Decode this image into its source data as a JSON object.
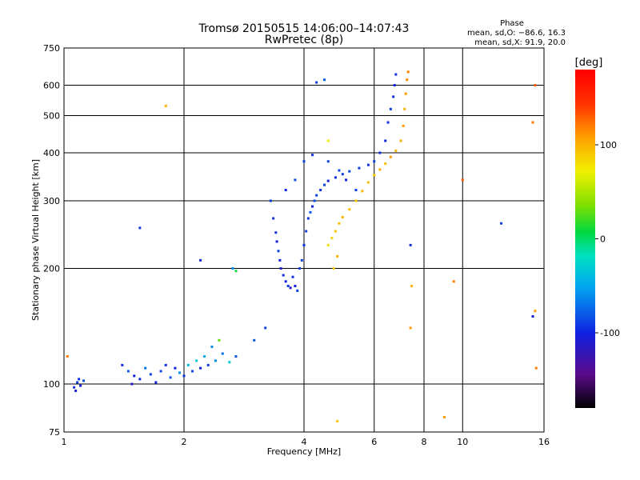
{
  "header": {
    "title": "Tromsø 20150515 14:06:00–14:07:43",
    "subtitle": "RwPretec (8p)",
    "phase_title": "Phase",
    "phase_o": "mean, sd,O: −86.6, 16.3",
    "phase_x": "mean, sd,X:  91.9, 20.0"
  },
  "chart_data": {
    "type": "scatter",
    "xlabel": "Frequency [MHz]",
    "ylabel": "Stationary phase Virtual Height [km]",
    "x_scale": "log",
    "y_scale": "log",
    "xlim": [
      1,
      16
    ],
    "ylim": [
      75,
      750
    ],
    "x_ticks": [
      1,
      2,
      4,
      6,
      8,
      10,
      16
    ],
    "y_ticks": [
      75,
      100,
      200,
      300,
      400,
      500,
      600,
      750
    ],
    "grid": true,
    "colorbar": {
      "label": "[deg]",
      "range": [
        -180,
        180
      ],
      "ticks": [
        -100,
        0,
        100
      ]
    },
    "series": [
      {
        "points": [
          [
            1.06,
            98,
            -95
          ],
          [
            1.08,
            101,
            -90
          ],
          [
            1.1,
            99,
            -100
          ],
          [
            1.12,
            102,
            -85
          ],
          [
            1.07,
            96,
            -110
          ],
          [
            1.09,
            103,
            -95
          ],
          [
            1.45,
            108,
            -80
          ],
          [
            1.5,
            105,
            -100
          ],
          [
            1.55,
            103,
            -95
          ],
          [
            1.6,
            110,
            -70
          ],
          [
            1.65,
            106,
            -90
          ],
          [
            1.7,
            101,
            -100
          ],
          [
            1.75,
            108,
            -85
          ],
          [
            1.8,
            112,
            -95
          ],
          [
            1.85,
            104,
            -80
          ],
          [
            1.9,
            110,
            -100
          ],
          [
            1.95,
            107,
            -60
          ],
          [
            2.0,
            105,
            -95
          ],
          [
            2.05,
            112,
            -40
          ],
          [
            2.1,
            108,
            -85
          ],
          [
            2.15,
            115,
            -30
          ],
          [
            2.2,
            110,
            -100
          ],
          [
            2.25,
            118,
            -50
          ],
          [
            2.3,
            112,
            -90
          ],
          [
            2.4,
            115,
            -60
          ],
          [
            2.5,
            120,
            -70
          ],
          [
            2.6,
            114,
            -30
          ],
          [
            2.7,
            118,
            -80
          ],
          [
            1.4,
            112,
            -95
          ],
          [
            1.48,
            100,
            -110
          ],
          [
            2.35,
            125,
            -60
          ],
          [
            2.45,
            130,
            30
          ],
          [
            3.0,
            130,
            -80
          ],
          [
            3.2,
            140,
            -90
          ],
          [
            3.4,
            248,
            -95
          ],
          [
            3.42,
            235,
            -100
          ],
          [
            3.45,
            222,
            -90
          ],
          [
            3.48,
            210,
            -100
          ],
          [
            3.5,
            200,
            -105
          ],
          [
            3.55,
            192,
            -95
          ],
          [
            3.6,
            185,
            -100
          ],
          [
            3.65,
            180,
            -90
          ],
          [
            3.7,
            178,
            -110
          ],
          [
            3.75,
            190,
            -95
          ],
          [
            3.8,
            180,
            -100
          ],
          [
            3.85,
            175,
            -90
          ],
          [
            3.9,
            200,
            -85
          ],
          [
            3.95,
            210,
            -90
          ],
          [
            4.0,
            230,
            -95
          ],
          [
            4.05,
            250,
            -90
          ],
          [
            4.1,
            270,
            -95
          ],
          [
            4.15,
            280,
            -80
          ],
          [
            4.2,
            290,
            -100
          ],
          [
            4.25,
            300,
            -85
          ],
          [
            4.3,
            310,
            -90
          ],
          [
            4.4,
            320,
            -95
          ],
          [
            4.5,
            330,
            -90
          ],
          [
            4.6,
            338,
            -100
          ],
          [
            4.8,
            345,
            -95
          ],
          [
            5.0,
            352,
            -90
          ],
          [
            5.2,
            358,
            -85
          ],
          [
            5.5,
            365,
            -90
          ],
          [
            5.8,
            372,
            -95
          ],
          [
            6.0,
            380,
            -90
          ],
          [
            6.2,
            400,
            -95
          ],
          [
            6.4,
            430,
            -100
          ],
          [
            6.5,
            480,
            -95
          ],
          [
            6.6,
            520,
            -90
          ],
          [
            6.7,
            560,
            -95
          ],
          [
            6.75,
            600,
            -100
          ],
          [
            6.8,
            640,
            -95
          ],
          [
            3.3,
            300,
            -90
          ],
          [
            3.35,
            270,
            -95
          ],
          [
            3.6,
            320,
            -100
          ],
          [
            3.8,
            340,
            -85
          ],
          [
            4.0,
            380,
            -90
          ],
          [
            4.2,
            395,
            -95
          ],
          [
            4.6,
            380,
            -90
          ],
          [
            4.9,
            360,
            -85
          ],
          [
            5.1,
            340,
            -100
          ],
          [
            4.5,
            620,
            -80
          ],
          [
            4.3,
            610,
            -90
          ],
          [
            4.6,
            230,
            80
          ],
          [
            4.7,
            240,
            85
          ],
          [
            4.8,
            250,
            90
          ],
          [
            4.9,
            262,
            95
          ],
          [
            5.0,
            272,
            100
          ],
          [
            5.2,
            285,
            95
          ],
          [
            5.4,
            300,
            90
          ],
          [
            5.6,
            318,
            100
          ],
          [
            5.8,
            335,
            95
          ],
          [
            6.0,
            350,
            90
          ],
          [
            6.2,
            362,
            100
          ],
          [
            6.4,
            375,
            95
          ],
          [
            6.6,
            390,
            110
          ],
          [
            6.8,
            405,
            100
          ],
          [
            7.0,
            430,
            105
          ],
          [
            7.1,
            470,
            110
          ],
          [
            7.15,
            520,
            100
          ],
          [
            7.2,
            570,
            110
          ],
          [
            7.25,
            620,
            115
          ],
          [
            7.3,
            650,
            120
          ],
          [
            4.75,
            200,
            85
          ],
          [
            4.85,
            215,
            100
          ],
          [
            1.8,
            530,
            100
          ],
          [
            1.55,
            255,
            -90
          ],
          [
            2.65,
            200,
            -60
          ],
          [
            2.7,
            197,
            10
          ],
          [
            7.4,
            230,
            -95
          ],
          [
            9.0,
            82,
            110
          ],
          [
            9.5,
            185,
            120
          ],
          [
            10.0,
            340,
            130
          ],
          [
            12.5,
            262,
            -90
          ],
          [
            15.0,
            150,
            -100
          ],
          [
            15.2,
            155,
            110
          ],
          [
            15.0,
            480,
            120
          ],
          [
            15.2,
            600,
            130
          ],
          [
            15.3,
            110,
            120
          ],
          [
            7.4,
            140,
            110
          ],
          [
            7.45,
            180,
            100
          ],
          [
            4.85,
            80,
            90
          ],
          [
            1.02,
            118,
            120
          ],
          [
            2.2,
            210,
            -100
          ],
          [
            4.6,
            430,
            70
          ],
          [
            5.4,
            320,
            -90
          ]
        ]
      }
    ]
  }
}
